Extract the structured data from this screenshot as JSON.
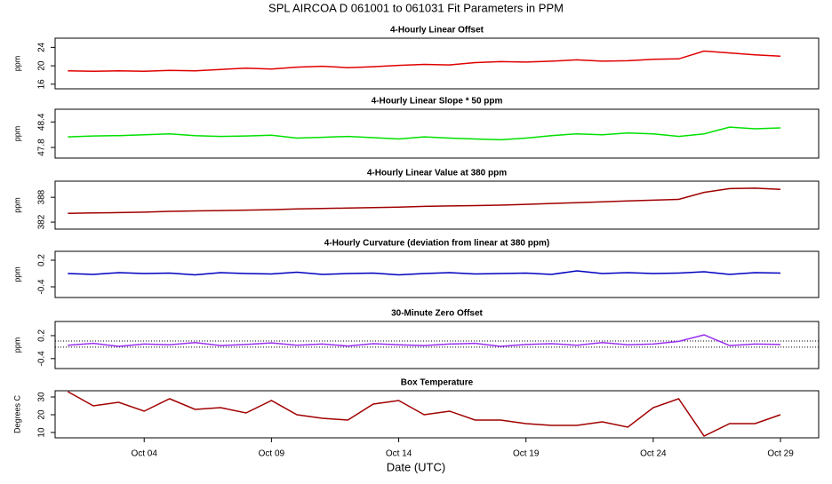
{
  "chart_data": {
    "title": "SPL   AIRCOA D   061001 to 061031   Fit Parameters in PPM",
    "xlabel": "Date (UTC)",
    "x": [
      "2006-10-01",
      "2006-10-02",
      "2006-10-03",
      "2006-10-04",
      "2006-10-05",
      "2006-10-06",
      "2006-10-07",
      "2006-10-08",
      "2006-10-09",
      "2006-10-10",
      "2006-10-11",
      "2006-10-12",
      "2006-10-13",
      "2006-10-14",
      "2006-10-15",
      "2006-10-16",
      "2006-10-17",
      "2006-10-18",
      "2006-10-19",
      "2006-10-20",
      "2006-10-21",
      "2006-10-22",
      "2006-10-23",
      "2006-10-24",
      "2006-10-25",
      "2006-10-26",
      "2006-10-27",
      "2006-10-28",
      "2006-10-29"
    ],
    "xlim": [
      "2006-09-30T12:00",
      "2006-10-30T12:00"
    ],
    "xticks": [
      {
        "value": "2006-10-04",
        "label": "Oct 04"
      },
      {
        "value": "2006-10-09",
        "label": "Oct 09"
      },
      {
        "value": "2006-10-14",
        "label": "Oct 14"
      },
      {
        "value": "2006-10-19",
        "label": "Oct 19"
      },
      {
        "value": "2006-10-24",
        "label": "Oct 24"
      },
      {
        "value": "2006-10-29",
        "label": "Oct 29"
      }
    ],
    "panels": [
      {
        "type": "line",
        "title": "4-Hourly Linear Offset",
        "ylabel": "ppm",
        "ylim": [
          15,
          26
        ],
        "yticks": [
          16,
          20,
          24
        ],
        "series": [
          {
            "color": "#e00000",
            "values": [
              18.9,
              18.8,
              18.9,
              18.8,
              19,
              18.9,
              19.2,
              19.5,
              19.3,
              19.7,
              19.9,
              19.6,
              19.8,
              20.1,
              20.3,
              20.2,
              20.7,
              20.9,
              20.8,
              21,
              21.3,
              21,
              21.1,
              21.4,
              21.5,
              23.2,
              22.8,
              22.4,
              22.1
            ]
          }
        ]
      },
      {
        "type": "line",
        "title": "4-Hourly Linear Slope * 50 ppm",
        "ylabel": "ppm",
        "ylim": [
          47.55,
          48.7
        ],
        "yticks": [
          47.8,
          48.4
        ],
        "series": [
          {
            "color": "#00e000",
            "values": [
              48.05,
              48.07,
              48.08,
              48.1,
              48.12,
              48.08,
              48.06,
              48.07,
              48.09,
              48.02,
              48.04,
              48.06,
              48.03,
              48.0,
              48.05,
              48.02,
              48.0,
              47.98,
              48.02,
              48.08,
              48.12,
              48.1,
              48.14,
              48.12,
              48.06,
              48.12,
              48.28,
              48.24,
              48.26
            ]
          }
        ]
      },
      {
        "type": "line",
        "title": "4-Hourly Linear Value at 380 ppm",
        "ylabel": "ppm",
        "ylim": [
          380.3,
          391.9
        ],
        "yticks": [
          382,
          388
        ],
        "series": [
          {
            "color": "#a00000",
            "values": [
              384.1,
              384.2,
              384.3,
              384.4,
              384.6,
              384.7,
              384.8,
              384.9,
              385.0,
              385.2,
              385.3,
              385.4,
              385.5,
              385.6,
              385.8,
              385.9,
              386.0,
              386.1,
              386.3,
              386.5,
              386.7,
              386.9,
              387.1,
              387.3,
              387.5,
              389.2,
              390.1,
              390.2,
              389.9
            ]
          }
        ]
      },
      {
        "type": "line",
        "title": "4-Hourly Curvature (deviation from linear at 380 ppm)",
        "ylabel": "ppm",
        "ylim": [
          -0.64,
          0.4
        ],
        "yticks": [
          -0.4,
          0.2
        ],
        "series": [
          {
            "color": "#0000c0",
            "values": [
              -0.1,
              -0.12,
              -0.08,
              -0.1,
              -0.09,
              -0.13,
              -0.08,
              -0.1,
              -0.11,
              -0.07,
              -0.12,
              -0.1,
              -0.09,
              -0.13,
              -0.1,
              -0.08,
              -0.11,
              -0.1,
              -0.09,
              -0.12,
              -0.04,
              -0.1,
              -0.08,
              -0.1,
              -0.09,
              -0.06,
              -0.12,
              -0.08,
              -0.09
            ]
          }
        ]
      },
      {
        "type": "line",
        "title": "30-Minute Zero Offset",
        "ylabel": "ppm",
        "ylim": [
          -0.66,
          0.57
        ],
        "yticks": [
          -0.4,
          0.2
        ],
        "hlines": [
          0.06,
          -0.1
        ],
        "series": [
          {
            "color": "#9a30f0",
            "values": [
              -0.05,
              0.0,
              -0.08,
              -0.02,
              -0.04,
              0.02,
              -0.06,
              -0.03,
              0.01,
              -0.05,
              -0.02,
              -0.07,
              -0.01,
              -0.04,
              -0.06,
              -0.02,
              0.0,
              -0.08,
              -0.03,
              -0.01,
              -0.05,
              0.02,
              -0.04,
              -0.02,
              0.05,
              0.22,
              -0.06,
              -0.02,
              -0.03
            ]
          }
        ]
      },
      {
        "type": "line",
        "title": "Box Temperature",
        "ylabel": "Degrees C",
        "ylim": [
          7,
          33.5
        ],
        "yticks": [
          10,
          20,
          30
        ],
        "series": [
          {
            "color": "#a00000",
            "values": [
              33,
              25,
              27,
              22,
              29,
              23,
              24,
              21,
              28,
              20,
              18,
              17,
              26,
              28,
              20,
              22,
              17,
              17,
              15,
              14,
              14,
              16,
              13,
              24,
              29,
              8,
              15,
              15,
              20
            ]
          }
        ]
      }
    ]
  }
}
